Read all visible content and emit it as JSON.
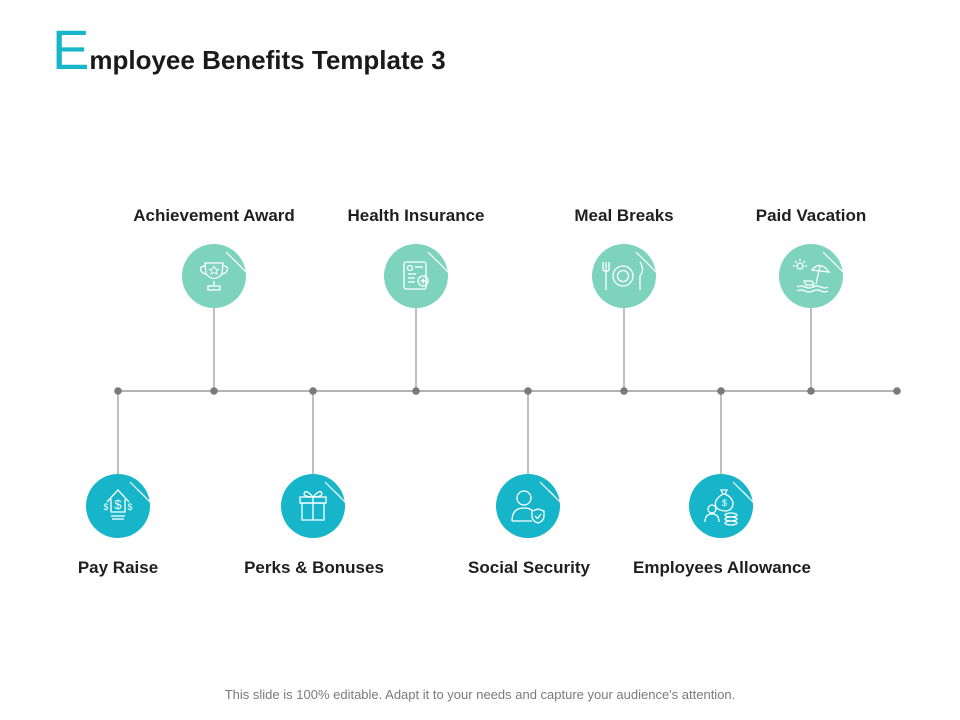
{
  "title": {
    "first_letter": "E",
    "rest": "mployee Benefits Template 3"
  },
  "colors": {
    "accent_top": "#7dd3bc",
    "accent_bottom": "#16b5c9",
    "line": "#9a9a9a",
    "dot": "#7a7a7a"
  },
  "top_items": [
    {
      "label": "Achievement Award",
      "icon": "trophy-icon"
    },
    {
      "label": "Health Insurance",
      "icon": "insurance-document-icon"
    },
    {
      "label": "Meal Breaks",
      "icon": "plate-cutlery-icon"
    },
    {
      "label": "Paid Vacation",
      "icon": "beach-umbrella-icon"
    }
  ],
  "bottom_items": [
    {
      "label": "Pay Raise",
      "icon": "money-growth-icon"
    },
    {
      "label": "Perks & Bonuses",
      "icon": "gift-icon"
    },
    {
      "label": "Social Security",
      "icon": "person-shield-icon"
    },
    {
      "label": "Employees Allowance",
      "icon": "money-bag-icon"
    }
  ],
  "footer": "This slide is 100% editable. Adapt it to your needs and capture your audience's attention."
}
